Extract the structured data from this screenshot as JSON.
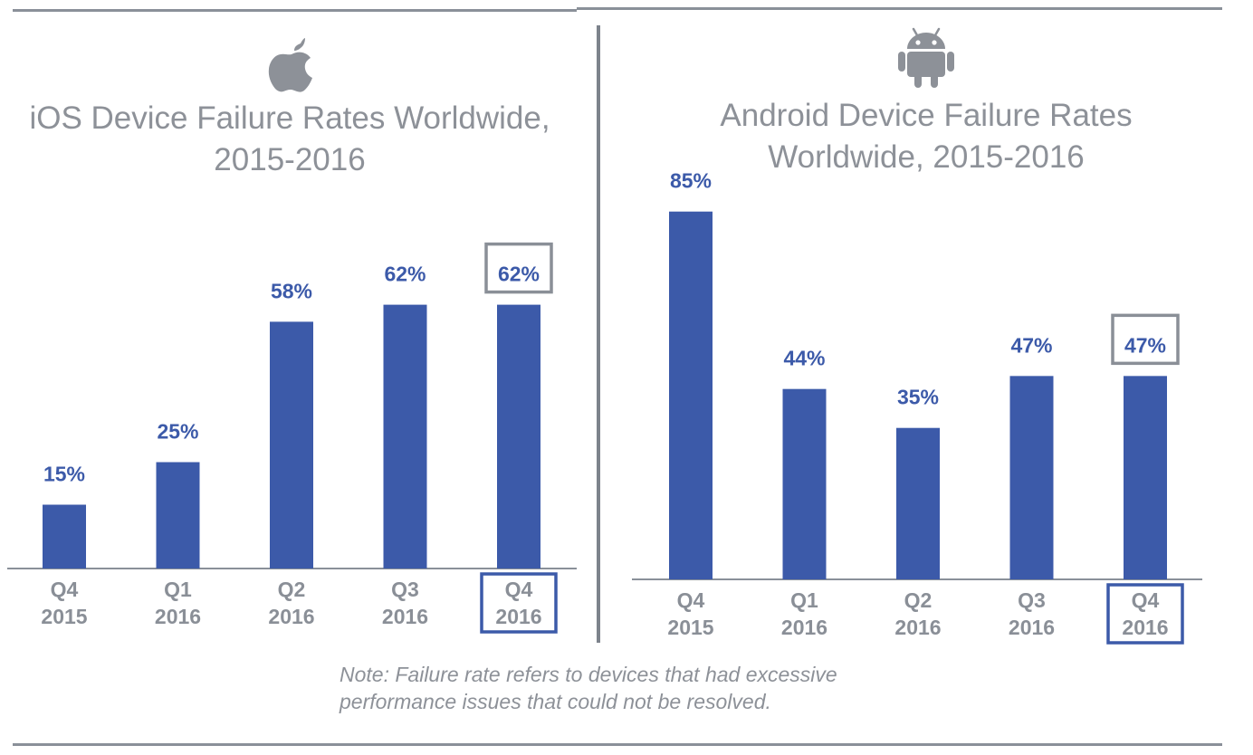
{
  "colors": {
    "bar": "#3c5aa9",
    "value_label": "#3c5aa9",
    "tick_label": "#8a8f97",
    "title": "#8d9198",
    "highlight_value_box": "#8a8f97",
    "highlight_tick_box": "#3c5aa9"
  },
  "ios": {
    "icon": "apple-logo-icon"
  },
  "android": {
    "icon": "android-robot-icon"
  },
  "chart_data": [
    {
      "type": "bar",
      "title": "iOS Device Failure Rates Worldwide, 2015-2016",
      "title_lines": [
        "iOS Device Failure Rates Worldwide,",
        "2015-2016"
      ],
      "categories": [
        [
          "Q4",
          "2015"
        ],
        [
          "Q1",
          "2016"
        ],
        [
          "Q2",
          "2016"
        ],
        [
          "Q3",
          "2016"
        ],
        [
          "Q4",
          "2016"
        ]
      ],
      "values": [
        15,
        25,
        58,
        62,
        62
      ],
      "value_labels": [
        "15%",
        "25%",
        "58%",
        "62%",
        "62%"
      ],
      "unit": "%",
      "ylim": [
        0,
        100
      ],
      "grid": false,
      "highlight_index": 4
    },
    {
      "type": "bar",
      "title": "Android Device Failure Rates Worldwide, 2015-2016",
      "title_lines": [
        "Android Device Failure Rates",
        "Worldwide, 2015-2016"
      ],
      "categories": [
        [
          "Q4",
          "2015"
        ],
        [
          "Q1",
          "2016"
        ],
        [
          "Q2",
          "2016"
        ],
        [
          "Q3",
          "2016"
        ],
        [
          "Q4",
          "2016"
        ]
      ],
      "values": [
        85,
        44,
        35,
        47,
        47
      ],
      "value_labels": [
        "85%",
        "44%",
        "35%",
        "47%",
        "47%"
      ],
      "unit": "%",
      "ylim": [
        0,
        100
      ],
      "grid": false,
      "highlight_index": 4
    }
  ],
  "note": "Note: Failure rate refers to devices that had excessive performance issues that could not be resolved."
}
